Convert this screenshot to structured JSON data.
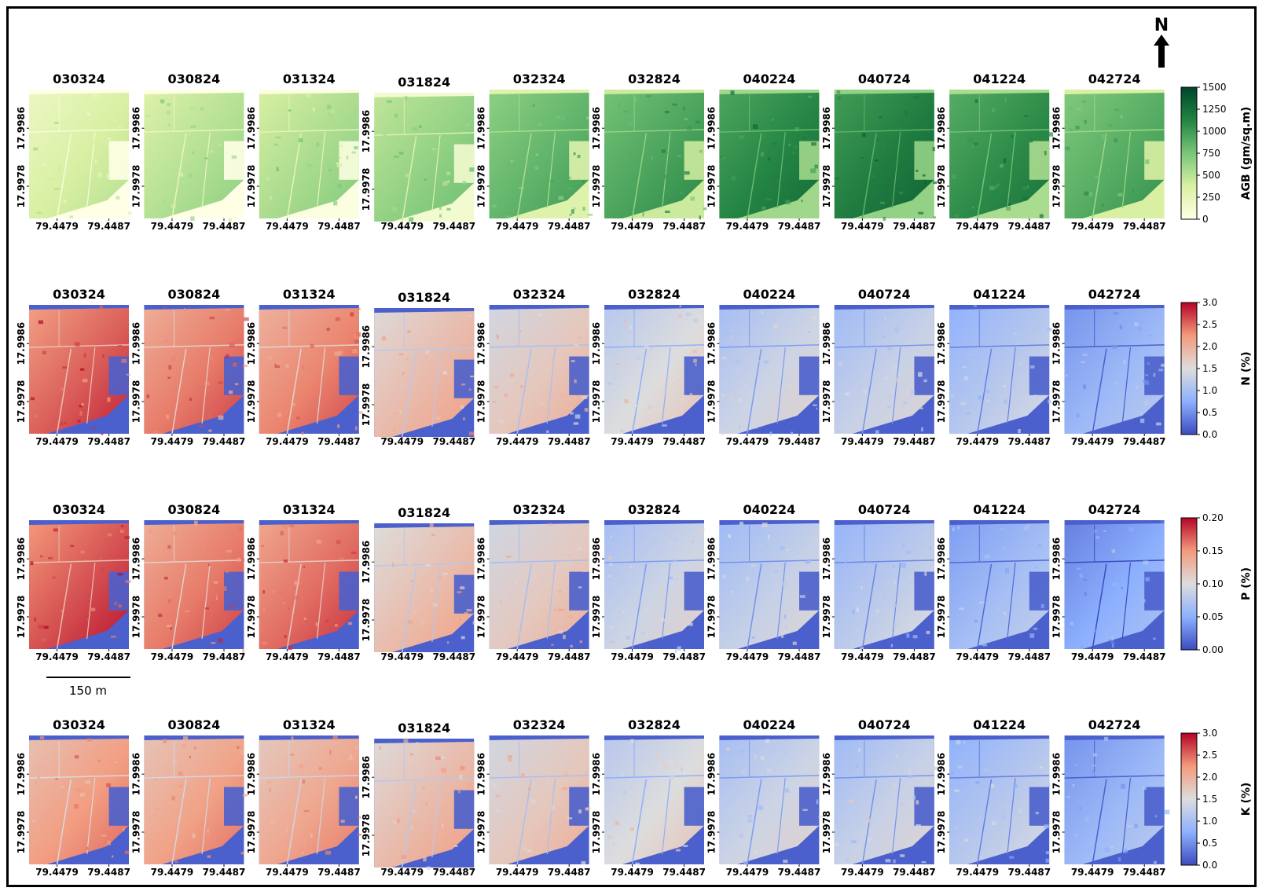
{
  "figure": {
    "dates": [
      "030324",
      "030824",
      "031324",
      "031824",
      "032324",
      "032824",
      "040224",
      "040724",
      "041224",
      "042724"
    ],
    "lat_ticks": [
      "17.9986",
      "17.9978"
    ],
    "lon_ticks": [
      "79.4479",
      "79.4487"
    ],
    "scale_bar_label": "150 m",
    "north_label": "N"
  },
  "chart_data": [
    {
      "type": "heatmap",
      "title": "AGB",
      "colorbar_label": "AGB (gm/sq.m)",
      "colormap": "Greens",
      "colors": [
        "#ffffe5",
        "#d9f0a3",
        "#78c679",
        "#238443",
        "#004529"
      ],
      "vmin": 0,
      "vmax": 1500,
      "colorbar_ticks": [
        "1500",
        "1250",
        "1000",
        "750",
        "500",
        "250",
        "0"
      ],
      "panels": [
        {
          "date": "030324",
          "mean_value": 380
        },
        {
          "date": "030824",
          "mean_value": 520
        },
        {
          "date": "031324",
          "mean_value": 560
        },
        {
          "date": "031824",
          "mean_value": 650
        },
        {
          "date": "032324",
          "mean_value": 850
        },
        {
          "date": "032824",
          "mean_value": 950
        },
        {
          "date": "040224",
          "mean_value": 1120
        },
        {
          "date": "040724",
          "mean_value": 1170
        },
        {
          "date": "041224",
          "mean_value": 1080
        },
        {
          "date": "042724",
          "mean_value": 900
        }
      ]
    },
    {
      "type": "heatmap",
      "title": "N",
      "colorbar_label": "N (%)",
      "colormap": "coolwarm",
      "colors": [
        "#3b4cc0",
        "#8db0fe",
        "#dddddd",
        "#f49a7b",
        "#b40426"
      ],
      "vmin": 0.0,
      "vmax": 3.0,
      "colorbar_ticks": [
        "3.0",
        "2.5",
        "2.0",
        "1.5",
        "1.0",
        "0.5",
        "0.0"
      ],
      "panels": [
        {
          "date": "030324",
          "mean_value": 2.55
        },
        {
          "date": "030824",
          "mean_value": 2.4
        },
        {
          "date": "031324",
          "mean_value": 2.35
        },
        {
          "date": "031824",
          "mean_value": 1.9
        },
        {
          "date": "032324",
          "mean_value": 1.75
        },
        {
          "date": "032824",
          "mean_value": 1.5
        },
        {
          "date": "040224",
          "mean_value": 1.35
        },
        {
          "date": "040724",
          "mean_value": 1.3
        },
        {
          "date": "041224",
          "mean_value": 1.15
        },
        {
          "date": "042724",
          "mean_value": 0.9
        }
      ]
    },
    {
      "type": "heatmap",
      "title": "P",
      "colorbar_label": "P (%)",
      "colormap": "coolwarm",
      "colors": [
        "#3b4cc0",
        "#8db0fe",
        "#dddddd",
        "#f49a7b",
        "#b40426"
      ],
      "vmin": 0.0,
      "vmax": 0.2,
      "colorbar_ticks": [
        "0.20",
        "0.15",
        "0.10",
        "0.05",
        "0.00"
      ],
      "panels": [
        {
          "date": "030324",
          "mean_value": 0.175
        },
        {
          "date": "030824",
          "mean_value": 0.16
        },
        {
          "date": "031324",
          "mean_value": 0.165
        },
        {
          "date": "031824",
          "mean_value": 0.125
        },
        {
          "date": "032324",
          "mean_value": 0.115
        },
        {
          "date": "032824",
          "mean_value": 0.09
        },
        {
          "date": "040224",
          "mean_value": 0.085
        },
        {
          "date": "040724",
          "mean_value": 0.08
        },
        {
          "date": "041224",
          "mean_value": 0.065
        },
        {
          "date": "042724",
          "mean_value": 0.05
        }
      ]
    },
    {
      "type": "heatmap",
      "title": "K",
      "colorbar_label": "K (%)",
      "colormap": "coolwarm",
      "colors": [
        "#3b4cc0",
        "#8db0fe",
        "#dddddd",
        "#f49a7b",
        "#b40426"
      ],
      "vmin": 0.0,
      "vmax": 3.0,
      "colorbar_ticks": [
        "3.0",
        "2.5",
        "2.0",
        "1.5",
        "1.0",
        "0.5",
        "0.0"
      ],
      "panels": [
        {
          "date": "030324",
          "mean_value": 2.2
        },
        {
          "date": "030824",
          "mean_value": 2.15
        },
        {
          "date": "031324",
          "mean_value": 2.1
        },
        {
          "date": "031824",
          "mean_value": 1.9
        },
        {
          "date": "032324",
          "mean_value": 1.75
        },
        {
          "date": "032824",
          "mean_value": 1.5
        },
        {
          "date": "040224",
          "mean_value": 1.35
        },
        {
          "date": "040724",
          "mean_value": 1.3
        },
        {
          "date": "041224",
          "mean_value": 1.15
        },
        {
          "date": "042724",
          "mean_value": 0.9
        }
      ]
    }
  ]
}
